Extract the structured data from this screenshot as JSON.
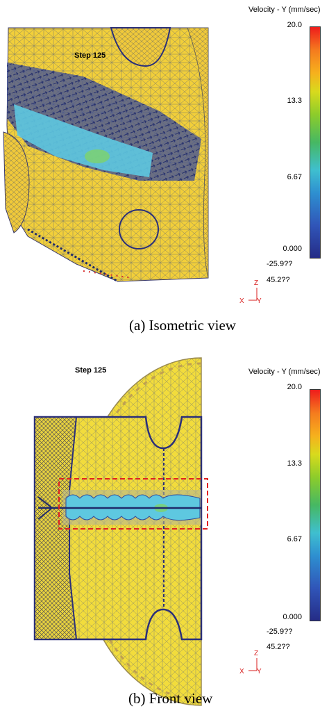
{
  "panel_a": {
    "step_label": "Step  125",
    "legend_title": "Velocity - Y (mm/sec)",
    "ticks": [
      "20.0",
      "13.3",
      "6.67",
      "0.000"
    ],
    "min_value": "-25.9??",
    "max_value": "45.2??",
    "axis": {
      "z": "Z",
      "x": "X",
      "y": "Y"
    },
    "caption": "(a) Isometric view"
  },
  "panel_b": {
    "step_label": "Step  125",
    "legend_title": "Velocity - Y (mm/sec)",
    "ticks": [
      "20.0",
      "13.3",
      "6.67",
      "0.000"
    ],
    "min_value": "-25.9??",
    "max_value": "45.2??",
    "axis": {
      "z": "Z",
      "x": "X",
      "y": "Y"
    },
    "caption": "(b) Front view"
  },
  "colors": {
    "mesh_fill": "#f2cf3a",
    "mesh_line": "#8a8a8a",
    "flow_cyan": "#5ec8e0",
    "vector_dark": "#1f2a6b",
    "highlight_box": "#e02020"
  }
}
